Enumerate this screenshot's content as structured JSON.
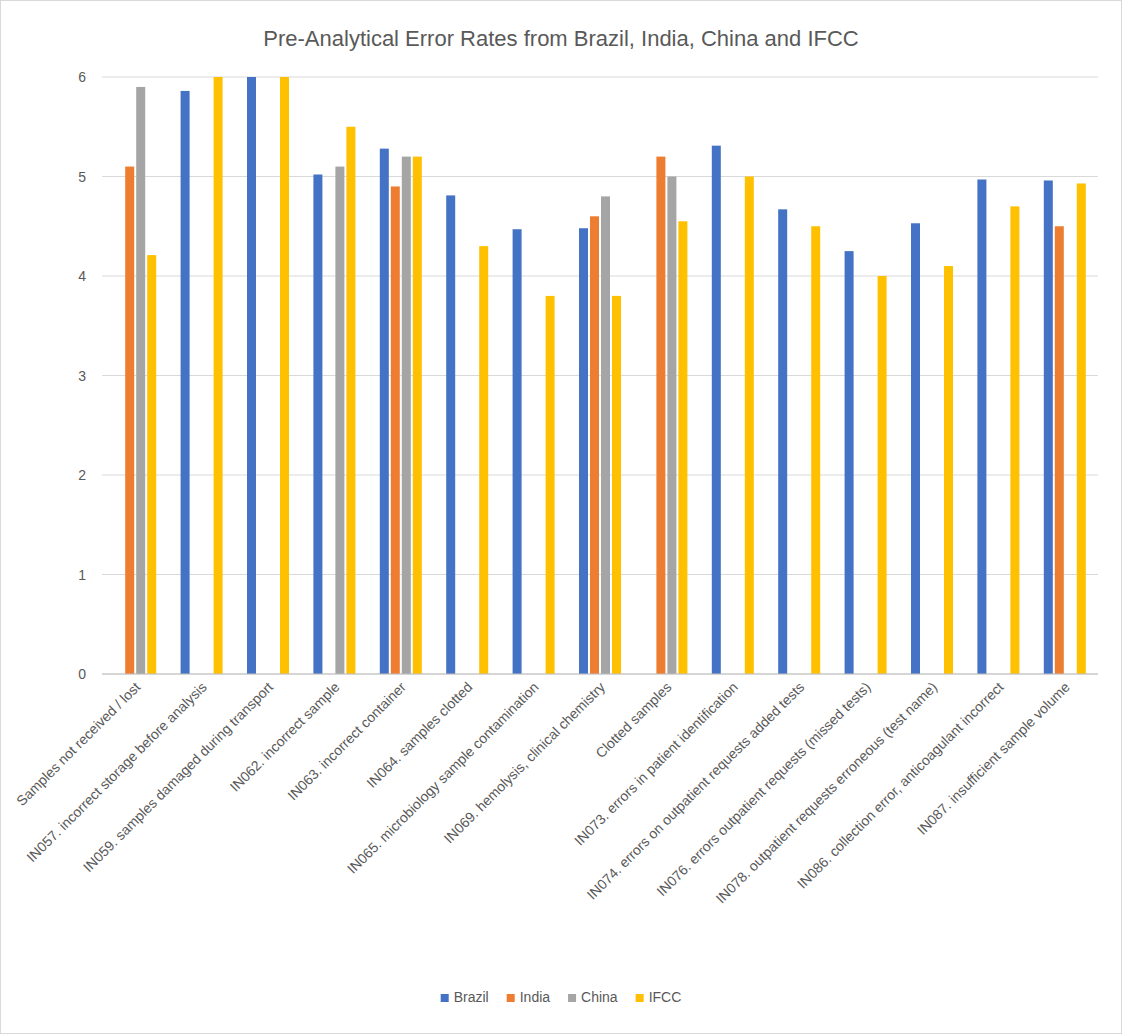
{
  "chart_data": {
    "type": "bar",
    "title": "Pre-Analytical Error Rates from Brazil, India, China and IFCC",
    "categories": [
      "Samples not received / lost",
      "IN057. incorrect storage before analysis",
      "IN059. samples damaged during transport",
      "IN062. incorrect sample",
      "IN063. incorrect container",
      "IN064. samples clotted",
      "IN065. microbiology sample contamination",
      "IN069. hemolysis, clinical chemistry",
      "Clotted samples",
      "IN073. errors in patient identification",
      "IN074. errors on outpatient requests added tests",
      "IN076. errors outpatient requests (missed tests)",
      "IN078. outpatient requests erroneous (test name)",
      "IN086. collection error, anticoagulant incorrect",
      "IN087. insufficient sample volume"
    ],
    "series": [
      {
        "name": "Brazil",
        "color": "#4472c4",
        "values": [
          null,
          5.86,
          6.0,
          5.02,
          5.28,
          4.81,
          4.47,
          4.48,
          null,
          5.31,
          4.67,
          4.25,
          4.53,
          4.97,
          4.96
        ]
      },
      {
        "name": "India",
        "color": "#ed7d31",
        "values": [
          5.1,
          null,
          null,
          null,
          4.9,
          null,
          null,
          4.6,
          5.2,
          null,
          null,
          null,
          null,
          null,
          4.5
        ]
      },
      {
        "name": "China",
        "color": "#a5a5a5",
        "values": [
          5.9,
          null,
          null,
          5.1,
          5.2,
          null,
          null,
          4.8,
          5.0,
          null,
          null,
          null,
          null,
          null,
          null
        ]
      },
      {
        "name": "IFCC",
        "color": "#ffc000",
        "values": [
          4.21,
          6.0,
          6.0,
          5.5,
          5.2,
          4.3,
          3.8,
          3.8,
          4.55,
          5.0,
          4.5,
          4.0,
          4.1,
          4.7,
          4.93
        ]
      }
    ],
    "ylim": [
      0,
      6
    ],
    "yticks": [
      0,
      1,
      2,
      3,
      4,
      5,
      6
    ],
    "grid": true,
    "legend": "bottom"
  }
}
